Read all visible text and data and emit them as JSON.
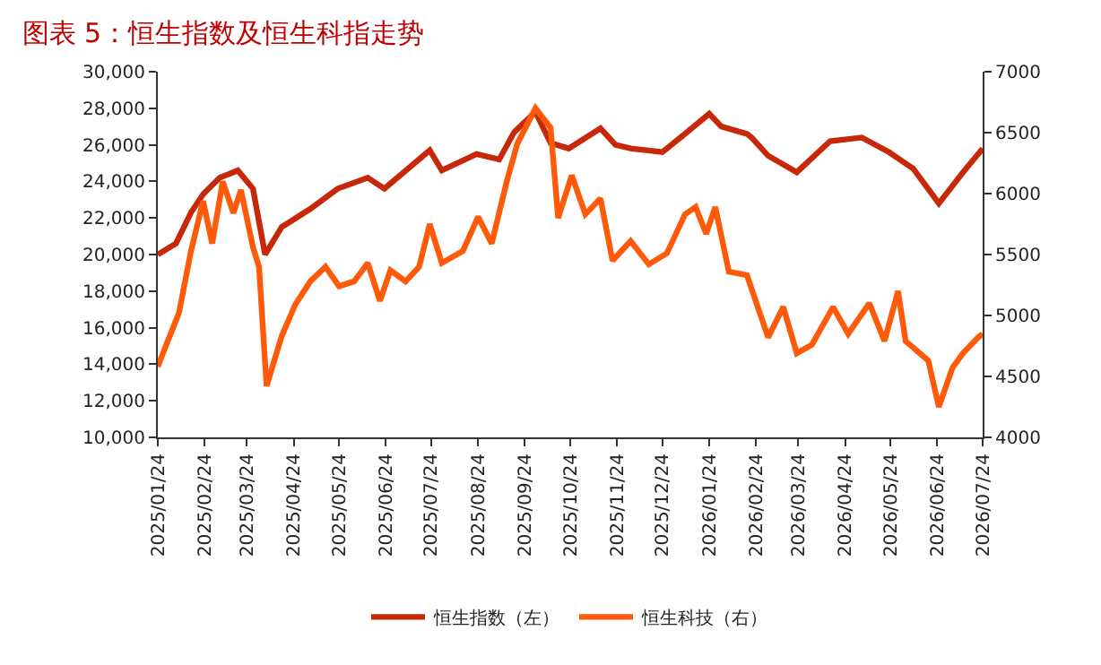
{
  "chart_data": {
    "type": "line",
    "title": "图表 5：恒生指数及恒生科指走势",
    "xlim": [
      "2025-01-24",
      "2026-07-24"
    ],
    "xticks": [
      {
        "value": "2025-01-24",
        "label": "2025/01/24"
      },
      {
        "value": "2025-02-24",
        "label": "2025/02/24"
      },
      {
        "value": "2025-03-24",
        "label": "2025/03/24"
      },
      {
        "value": "2025-04-24",
        "label": "2025/04/24"
      },
      {
        "value": "2025-05-24",
        "label": "2025/05/24"
      },
      {
        "value": "2025-06-24",
        "label": "2025/06/24"
      },
      {
        "value": "2025-07-24",
        "label": "2025/07/24"
      },
      {
        "value": "2025-08-24",
        "label": "2025/08/24"
      },
      {
        "value": "2025-09-24",
        "label": "2025/09/24"
      },
      {
        "value": "2025-10-24",
        "label": "2025/10/24"
      },
      {
        "value": "2025-11-24",
        "label": "2025/11/24"
      },
      {
        "value": "2025-12-24",
        "label": "2025/12/24"
      },
      {
        "value": "2026-01-24",
        "label": "2026/01/24"
      },
      {
        "value": "2026-02-24",
        "label": "2026/02/24"
      },
      {
        "value": "2026-03-24",
        "label": "2026/03/24"
      },
      {
        "value": "2026-04-24",
        "label": "2026/04/24"
      },
      {
        "value": "2026-05-24",
        "label": "2026/05/24"
      },
      {
        "value": "2026-06-24",
        "label": "2026/06/24"
      },
      {
        "value": "2026-07-24",
        "label": "2026/07/24"
      }
    ],
    "ylim": [
      10000,
      30000
    ],
    "yticks": [
      {
        "value": 10000,
        "label": "10,000"
      },
      {
        "value": 12000,
        "label": "12,000"
      },
      {
        "value": 14000,
        "label": "14,000"
      },
      {
        "value": 16000,
        "label": "16,000"
      },
      {
        "value": 18000,
        "label": "18,000"
      },
      {
        "value": 20000,
        "label": "20,000"
      },
      {
        "value": 22000,
        "label": "22,000"
      },
      {
        "value": 24000,
        "label": "24,000"
      },
      {
        "value": 26000,
        "label": "26,000"
      },
      {
        "value": 28000,
        "label": "28,000"
      },
      {
        "value": 30000,
        "label": "30,000"
      }
    ],
    "y2lim": [
      4000,
      7000
    ],
    "y2ticks": [
      4000,
      4500,
      5000,
      5500,
      6000,
      6500,
      7000
    ],
    "legend": "bottom",
    "marker": "none",
    "line_style": "solid",
    "series": [
      {
        "name": "恒生指数（左）",
        "color": "#c8280a",
        "x": [
          "2025-01-24",
          "2025-02-05",
          "2025-02-15",
          "2025-02-23",
          "2025-03-06",
          "2025-03-18",
          "2025-03-28",
          "2025-04-05",
          "2025-04-16",
          "2025-05-05",
          "2025-05-23",
          "2025-06-12",
          "2025-06-23",
          "2025-07-23",
          "2025-07-31",
          "2025-08-23",
          "2025-09-07",
          "2025-09-17",
          "2025-10-01",
          "2025-10-11",
          "2025-10-23",
          "2025-11-13",
          "2025-11-23",
          "2025-12-03",
          "2025-12-24",
          "2026-01-08",
          "2026-01-24",
          "2026-02-01",
          "2026-02-18",
          "2026-02-21",
          "2026-03-04",
          "2026-03-23",
          "2026-04-14",
          "2026-05-05",
          "2026-05-23",
          "2026-06-08",
          "2026-06-25",
          "2026-07-11",
          "2026-07-24"
        ],
        "values": [
          20000,
          20600,
          22300,
          23300,
          24200,
          24600,
          23600,
          20000,
          21500,
          22500,
          23600,
          24200,
          23600,
          25700,
          24600,
          25500,
          25200,
          26700,
          27800,
          26100,
          25800,
          26900,
          26000,
          25800,
          25600,
          26600,
          27700,
          27000,
          26600,
          26400,
          25400,
          24500,
          26200,
          26400,
          25600,
          24700,
          22800,
          24500,
          25800
        ]
      },
      {
        "name": "恒生科技（右）",
        "color": "#ff5a0a",
        "axis": "y2",
        "x": [
          "2025-01-24",
          "2025-01-29",
          "2025-02-07",
          "2025-02-15",
          "2025-02-23",
          "2025-03-01",
          "2025-03-08",
          "2025-03-15",
          "2025-03-20",
          "2025-03-28",
          "2025-04-01",
          "2025-04-06",
          "2025-04-16",
          "2025-04-25",
          "2025-05-05",
          "2025-05-15",
          "2025-05-24",
          "2025-06-03",
          "2025-06-12",
          "2025-06-20",
          "2025-06-27",
          "2025-07-07",
          "2025-07-16",
          "2025-07-23",
          "2025-07-31",
          "2025-08-14",
          "2025-08-24",
          "2025-09-02",
          "2025-09-12",
          "2025-09-19",
          "2025-10-01",
          "2025-10-11",
          "2025-10-16",
          "2025-10-25",
          "2025-11-03",
          "2025-11-13",
          "2025-11-21",
          "2025-12-03",
          "2025-12-15",
          "2025-12-27",
          "2026-01-08",
          "2026-01-15",
          "2026-01-22",
          "2026-01-28",
          "2026-02-06",
          "2026-02-18",
          "2026-03-04",
          "2026-03-14",
          "2026-03-23",
          "2026-04-02",
          "2026-04-16",
          "2026-04-26",
          "2026-05-10",
          "2026-05-20",
          "2026-05-29",
          "2026-06-03",
          "2026-06-18",
          "2026-06-25",
          "2026-07-04",
          "2026-07-11",
          "2026-07-21",
          "2026-07-24"
        ],
        "values": [
          4580,
          4740,
          5020,
          5530,
          5940,
          5590,
          6100,
          5840,
          6030,
          5560,
          5400,
          4420,
          4830,
          5090,
          5280,
          5400,
          5240,
          5280,
          5430,
          5120,
          5370,
          5280,
          5400,
          5750,
          5430,
          5530,
          5810,
          5590,
          6100,
          6410,
          6700,
          6540,
          5800,
          6150,
          5830,
          5960,
          5450,
          5610,
          5420,
          5510,
          5830,
          5890,
          5670,
          5890,
          5360,
          5330,
          4820,
          5070,
          4690,
          4760,
          5070,
          4850,
          5100,
          4790,
          5200,
          4790,
          4630,
          4250,
          4570,
          4690,
          4820,
          4850
        ]
      }
    ]
  }
}
